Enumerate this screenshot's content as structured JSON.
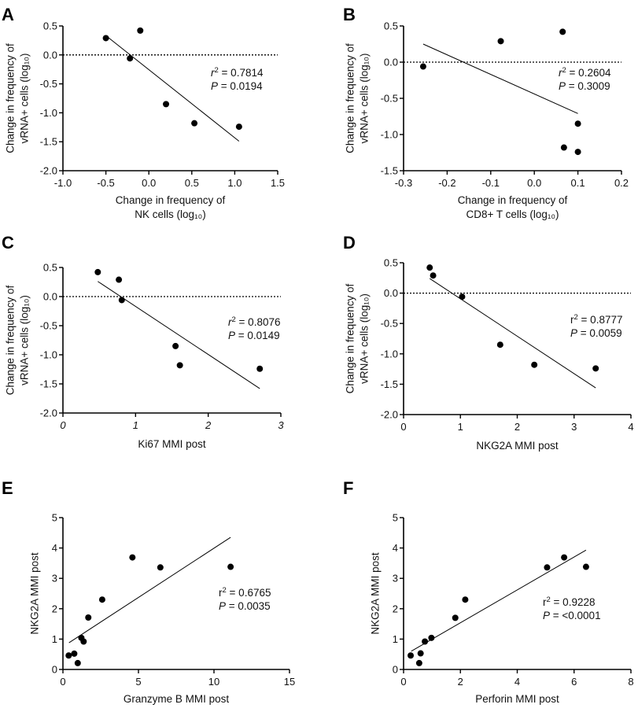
{
  "chart_data": [
    {
      "panel": "A",
      "type": "scatter",
      "xlabel": [
        "Change in frequency of",
        "NK cells (log₁₀)"
      ],
      "ylabel": [
        "Change in frequency of",
        "vRNA+ cells (log₁₀)"
      ],
      "xlim": [
        -1.0,
        1.5
      ],
      "ylim": [
        -2.0,
        0.5
      ],
      "xticks": [
        "-1.0",
        "-0.5",
        "0.0",
        "0.5",
        "1.0",
        "1.5"
      ],
      "xtick_values": [
        -1,
        -0.5,
        0,
        0.5,
        1,
        1.5
      ],
      "yticks": [
        "-2.0",
        "-1.5",
        "-1.0",
        "-0.5",
        "0.0",
        "0.5"
      ],
      "ytick_values": [
        -2,
        -1.5,
        -1,
        -0.5,
        0,
        0.5
      ],
      "reference_line_y": 0,
      "points": [
        [
          -0.5,
          0.29
        ],
        [
          -0.22,
          -0.06
        ],
        [
          -0.1,
          0.42
        ],
        [
          0.2,
          -0.85
        ],
        [
          0.53,
          -1.18
        ],
        [
          1.05,
          -1.24
        ]
      ],
      "fit_line": [
        [
          -0.48,
          0.31
        ],
        [
          1.05,
          -1.49
        ]
      ],
      "stats": [
        {
          "label": "r",
          "sup": "2",
          "value": " = 0.7814",
          "italic": true
        },
        {
          "label": "P",
          "value": " = 0.0194",
          "italic": true
        }
      ]
    },
    {
      "panel": "B",
      "type": "scatter",
      "xlabel": [
        "Change in frequency of",
        "CD8+ T cells (log₁₀)"
      ],
      "ylabel": [
        "Change in frequency of",
        "vRNA+ cells (log₁₀)"
      ],
      "xlim": [
        -0.3,
        0.2
      ],
      "ylim": [
        -1.5,
        0.5
      ],
      "xticks": [
        "-0.3",
        "-0.2",
        "-0.1",
        "0.0",
        "0.1",
        "0.2"
      ],
      "xtick_values": [
        -0.3,
        -0.2,
        -0.1,
        0,
        0.1,
        0.2
      ],
      "yticks": [
        "-1.5",
        "-1.0",
        "-0.5",
        "0.0",
        "0.5"
      ],
      "ytick_values": [
        -1.5,
        -1,
        -0.5,
        0,
        0.5
      ],
      "reference_line_y": 0,
      "points": [
        [
          -0.255,
          -0.06
        ],
        [
          -0.077,
          0.29
        ],
        [
          0.065,
          0.42
        ],
        [
          0.1,
          -0.85
        ],
        [
          0.068,
          -1.18
        ],
        [
          0.1,
          -1.24
        ]
      ],
      "fit_line": [
        [
          -0.255,
          0.25
        ],
        [
          0.1,
          -0.71
        ]
      ],
      "stats": [
        {
          "label": "r",
          "sup": "2",
          "value": " = 0.2604",
          "italic": true
        },
        {
          "label": "P",
          "value": " = 0.3009",
          "italic": true
        }
      ]
    },
    {
      "panel": "C",
      "type": "scatter",
      "xlabel": [
        "Ki67 MMI post"
      ],
      "ylabel": [
        "Change in frequency of",
        "vRNA+ cells (log₁₀)"
      ],
      "xlim": [
        0,
        3
      ],
      "ylim": [
        -2.0,
        0.5
      ],
      "xticks": [
        "0",
        "1",
        "2",
        "3"
      ],
      "xtick_values": [
        0,
        1,
        2,
        3
      ],
      "xticks_italic": true,
      "yticks": [
        "-2.0",
        "-1.5",
        "-1.0",
        "-0.5",
        "0.0",
        "0.5"
      ],
      "ytick_values": [
        -2,
        -1.5,
        -1,
        -0.5,
        0,
        0.5
      ],
      "reference_line_y": 0,
      "points": [
        [
          0.48,
          0.42
        ],
        [
          0.77,
          0.29
        ],
        [
          0.81,
          -0.06
        ],
        [
          1.55,
          -0.85
        ],
        [
          1.61,
          -1.18
        ],
        [
          2.71,
          -1.24
        ]
      ],
      "fit_line": [
        [
          0.48,
          0.26
        ],
        [
          2.71,
          -1.58
        ]
      ],
      "stats": [
        {
          "label": "r",
          "sup": "2",
          "value": " = 0.8076",
          "italic": true
        },
        {
          "label": "P",
          "value": " = 0.0149",
          "italic": true
        }
      ]
    },
    {
      "panel": "D",
      "type": "scatter",
      "xlabel": [
        "NKG2A MMI post"
      ],
      "ylabel": [
        "Change in frequency of",
        "vRNA+ cells (log₁₀)"
      ],
      "xlim": [
        0,
        4
      ],
      "ylim": [
        -2.0,
        0.5
      ],
      "xticks": [
        "0",
        "1",
        "2",
        "3",
        "4"
      ],
      "xtick_values": [
        0,
        1,
        2,
        3,
        4
      ],
      "yticks": [
        "-2.0",
        "-1.5",
        "-1.0",
        "-0.5",
        "0.0",
        "0.5"
      ],
      "ytick_values": [
        -2,
        -1.5,
        -1,
        -0.5,
        0,
        0.5
      ],
      "reference_line_y": 0,
      "points": [
        [
          0.46,
          0.42
        ],
        [
          0.52,
          0.29
        ],
        [
          1.03,
          -0.06
        ],
        [
          1.7,
          -0.85
        ],
        [
          2.3,
          -1.18
        ],
        [
          3.38,
          -1.24
        ]
      ],
      "fit_line": [
        [
          0.46,
          0.24
        ],
        [
          3.38,
          -1.56
        ]
      ],
      "stats": [
        {
          "label": "r",
          "sup": "2",
          "value": " =   0.8777",
          "italic": false
        },
        {
          "label": "P",
          "value": " =   0.0059",
          "italic": true
        }
      ]
    },
    {
      "panel": "E",
      "type": "scatter",
      "xlabel": [
        "Granzyme B MMI post"
      ],
      "ylabel": [
        "NKG2A MMI post"
      ],
      "xlim": [
        0,
        15
      ],
      "ylim": [
        0,
        5
      ],
      "xticks": [
        "0",
        "5",
        "10",
        "15"
      ],
      "xtick_values": [
        0,
        5,
        10,
        15
      ],
      "yticks": [
        "0",
        "1",
        "2",
        "3",
        "4",
        "5"
      ],
      "ytick_values": [
        0,
        1,
        2,
        3,
        4,
        5
      ],
      "points": [
        [
          0.38,
          0.46
        ],
        [
          0.75,
          0.52
        ],
        [
          0.98,
          0.21
        ],
        [
          1.22,
          1.04
        ],
        [
          1.37,
          0.92
        ],
        [
          1.68,
          1.71
        ],
        [
          2.6,
          2.3
        ],
        [
          4.6,
          3.69
        ],
        [
          6.45,
          3.36
        ],
        [
          11.1,
          3.38
        ]
      ],
      "fit_line": [
        [
          0.4,
          0.88
        ],
        [
          11.1,
          4.35
        ]
      ],
      "stats": [
        {
          "label": "r",
          "sup": "2",
          "value": " =  0.6765",
          "italic": false
        },
        {
          "label": "P",
          "value": " = 0.0035",
          "italic": true
        }
      ]
    },
    {
      "panel": "F",
      "type": "scatter",
      "xlabel": [
        "Perforin MMI post"
      ],
      "ylabel": [
        "NKG2A MMI post"
      ],
      "xlim": [
        0,
        8
      ],
      "ylim": [
        0,
        5
      ],
      "xticks": [
        "0",
        "2",
        "4",
        "6",
        "8"
      ],
      "xtick_values": [
        0,
        2,
        4,
        6,
        8
      ],
      "yticks": [
        "0",
        "1",
        "2",
        "3",
        "4",
        "5"
      ],
      "ytick_values": [
        0,
        1,
        2,
        3,
        4,
        5
      ],
      "points": [
        [
          0.25,
          0.46
        ],
        [
          0.6,
          0.53
        ],
        [
          0.55,
          0.21
        ],
        [
          0.75,
          0.92
        ],
        [
          0.98,
          1.04
        ],
        [
          1.82,
          1.7
        ],
        [
          2.17,
          2.3
        ],
        [
          5.05,
          3.36
        ],
        [
          5.65,
          3.69
        ],
        [
          6.42,
          3.38
        ]
      ],
      "fit_line": [
        [
          0.27,
          0.6
        ],
        [
          6.42,
          3.93
        ]
      ],
      "stats": [
        {
          "label": "r",
          "sup": "2",
          "value": " = 0.9228",
          "italic": false
        },
        {
          "label": "P",
          "value": " = <0.0001",
          "italic": true
        }
      ]
    }
  ]
}
